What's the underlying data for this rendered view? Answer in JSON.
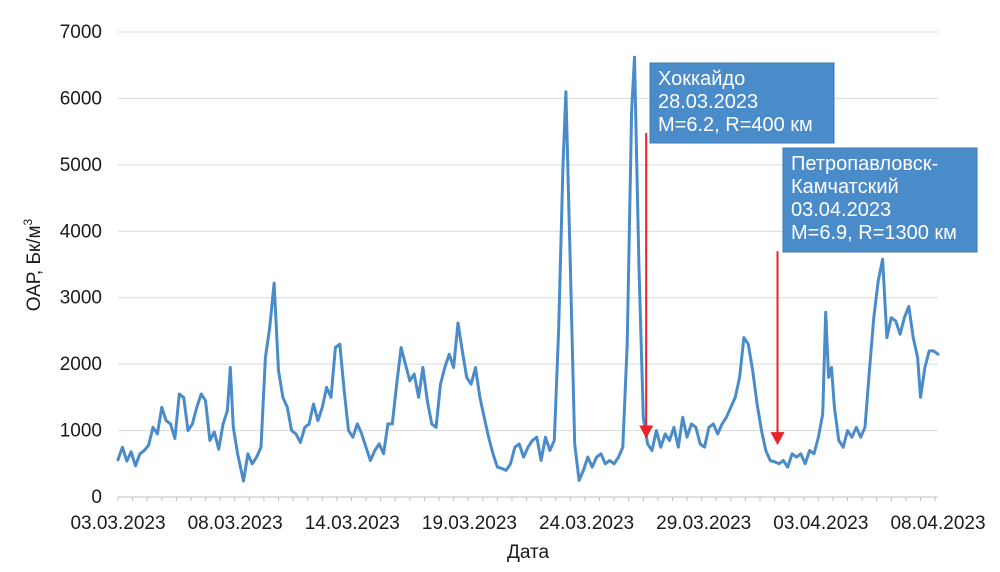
{
  "chart_data": {
    "type": "line",
    "xlabel": "Дата",
    "ylabel": "ОАР, Бк/м",
    "ylabel_superscript": "3",
    "ylim": [
      0,
      7000
    ],
    "yticks": [
      "0",
      "1000",
      "2000",
      "3000",
      "4000",
      "5000",
      "6000",
      "7000"
    ],
    "x_tick_labels": [
      "03.03.2023",
      "08.03.2023",
      "14.03.2023",
      "19.03.2023",
      "24.03.2023",
      "29.03.2023",
      "03.04.2023",
      "08.04.2023"
    ],
    "grid": true,
    "colors": {
      "line": "#4a8bc9",
      "note_fill": "#4a8bc9",
      "arrow": "#e8232a",
      "grid": "#d9d9d9"
    },
    "series": [
      {
        "values": [
          [
            0.0,
            560
          ],
          [
            0.3,
            750
          ],
          [
            0.6,
            540
          ],
          [
            0.9,
            680
          ],
          [
            1.2,
            470
          ],
          [
            1.5,
            650
          ],
          [
            1.8,
            700
          ],
          [
            2.1,
            780
          ],
          [
            2.4,
            1050
          ],
          [
            2.7,
            950
          ],
          [
            3.0,
            1350
          ],
          [
            3.3,
            1150
          ],
          [
            3.6,
            1100
          ],
          [
            3.9,
            880
          ],
          [
            4.2,
            1550
          ],
          [
            4.5,
            1500
          ],
          [
            4.8,
            1000
          ],
          [
            5.1,
            1100
          ],
          [
            5.4,
            1350
          ],
          [
            5.7,
            1550
          ],
          [
            6.0,
            1450
          ],
          [
            6.3,
            850
          ],
          [
            6.6,
            980
          ],
          [
            6.9,
            720
          ],
          [
            7.2,
            1100
          ],
          [
            7.5,
            1300
          ],
          [
            7.7,
            1950
          ],
          [
            7.9,
            1050
          ],
          [
            8.2,
            650
          ],
          [
            8.6,
            240
          ],
          [
            8.9,
            650
          ],
          [
            9.2,
            500
          ],
          [
            9.5,
            600
          ],
          [
            9.8,
            750
          ],
          [
            10.1,
            2100
          ],
          [
            10.4,
            2550
          ],
          [
            10.7,
            3220
          ],
          [
            11.0,
            1900
          ],
          [
            11.3,
            1500
          ],
          [
            11.6,
            1350
          ],
          [
            11.9,
            1000
          ],
          [
            12.2,
            950
          ],
          [
            12.5,
            820
          ],
          [
            12.8,
            1050
          ],
          [
            13.1,
            1100
          ],
          [
            13.4,
            1400
          ],
          [
            13.7,
            1150
          ],
          [
            14.0,
            1350
          ],
          [
            14.3,
            1650
          ],
          [
            14.6,
            1500
          ],
          [
            14.9,
            2250
          ],
          [
            15.2,
            2300
          ],
          [
            15.5,
            1600
          ],
          [
            15.8,
            1000
          ],
          [
            16.1,
            900
          ],
          [
            16.4,
            1100
          ],
          [
            16.7,
            950
          ],
          [
            17.0,
            750
          ],
          [
            17.3,
            550
          ],
          [
            17.6,
            700
          ],
          [
            17.9,
            800
          ],
          [
            18.2,
            650
          ],
          [
            18.5,
            1100
          ],
          [
            18.8,
            1100
          ],
          [
            19.1,
            1700
          ],
          [
            19.4,
            2250
          ],
          [
            19.7,
            2000
          ],
          [
            20.0,
            1750
          ],
          [
            20.3,
            1850
          ],
          [
            20.6,
            1500
          ],
          [
            20.9,
            1950
          ],
          [
            21.2,
            1450
          ],
          [
            21.5,
            1100
          ],
          [
            21.8,
            1050
          ],
          [
            22.1,
            1700
          ],
          [
            22.4,
            1950
          ],
          [
            22.7,
            2150
          ],
          [
            23.0,
            1950
          ],
          [
            23.3,
            2620
          ],
          [
            23.6,
            2200
          ],
          [
            23.9,
            1800
          ],
          [
            24.2,
            1700
          ],
          [
            24.5,
            1950
          ],
          [
            24.8,
            1500
          ],
          [
            25.1,
            1200
          ],
          [
            25.4,
            900
          ],
          [
            25.7,
            650
          ],
          [
            26.0,
            450
          ],
          [
            26.3,
            430
          ],
          [
            26.6,
            400
          ],
          [
            26.9,
            500
          ],
          [
            27.2,
            750
          ],
          [
            27.5,
            800
          ],
          [
            27.8,
            600
          ],
          [
            28.1,
            750
          ],
          [
            28.4,
            850
          ],
          [
            28.7,
            900
          ],
          [
            29.0,
            550
          ],
          [
            29.3,
            900
          ],
          [
            29.6,
            700
          ],
          [
            29.9,
            850
          ],
          [
            30.2,
            2500
          ],
          [
            30.5,
            5000
          ],
          [
            30.7,
            6100
          ],
          [
            31.0,
            3500
          ],
          [
            31.3,
            800
          ],
          [
            31.6,
            250
          ],
          [
            31.9,
            400
          ],
          [
            32.2,
            600
          ],
          [
            32.5,
            450
          ],
          [
            32.8,
            600
          ],
          [
            33.1,
            650
          ],
          [
            33.4,
            500
          ],
          [
            33.7,
            550
          ],
          [
            34.0,
            500
          ],
          [
            34.3,
            600
          ],
          [
            34.6,
            750
          ],
          [
            34.9,
            2300
          ],
          [
            35.2,
            5800
          ],
          [
            35.4,
            6620
          ],
          [
            35.7,
            3500
          ],
          [
            36.0,
            1200
          ],
          [
            36.3,
            800
          ],
          [
            36.6,
            700
          ],
          [
            36.9,
            1000
          ],
          [
            37.2,
            750
          ],
          [
            37.5,
            950
          ],
          [
            37.8,
            850
          ],
          [
            38.1,
            1050
          ],
          [
            38.4,
            750
          ],
          [
            38.7,
            1200
          ],
          [
            39.0,
            900
          ],
          [
            39.3,
            1100
          ],
          [
            39.6,
            1050
          ],
          [
            39.9,
            800
          ],
          [
            40.2,
            750
          ],
          [
            40.5,
            1050
          ],
          [
            40.8,
            1100
          ],
          [
            41.1,
            950
          ],
          [
            41.4,
            1100
          ],
          [
            41.7,
            1200
          ],
          [
            42.0,
            1350
          ],
          [
            42.3,
            1500
          ],
          [
            42.6,
            1800
          ],
          [
            42.9,
            2400
          ],
          [
            43.2,
            2300
          ],
          [
            43.5,
            1900
          ],
          [
            43.8,
            1400
          ],
          [
            44.1,
            1000
          ],
          [
            44.4,
            700
          ],
          [
            44.7,
            550
          ],
          [
            45.0,
            530
          ],
          [
            45.3,
            500
          ],
          [
            45.6,
            550
          ],
          [
            45.9,
            450
          ],
          [
            46.2,
            650
          ],
          [
            46.5,
            600
          ],
          [
            46.8,
            650
          ],
          [
            47.1,
            500
          ],
          [
            47.4,
            700
          ],
          [
            47.7,
            650
          ],
          [
            48.0,
            900
          ],
          [
            48.3,
            1250
          ],
          [
            48.5,
            2780
          ],
          [
            48.7,
            1800
          ],
          [
            48.9,
            1950
          ],
          [
            49.1,
            1350
          ],
          [
            49.4,
            850
          ],
          [
            49.7,
            750
          ],
          [
            50.0,
            1000
          ],
          [
            50.3,
            900
          ],
          [
            50.6,
            1050
          ],
          [
            50.9,
            900
          ],
          [
            51.2,
            1050
          ],
          [
            51.5,
            1900
          ],
          [
            51.8,
            2700
          ],
          [
            52.1,
            3250
          ],
          [
            52.4,
            3580
          ],
          [
            52.7,
            2400
          ],
          [
            53.0,
            2700
          ],
          [
            53.3,
            2650
          ],
          [
            53.6,
            2450
          ],
          [
            53.9,
            2700
          ],
          [
            54.2,
            2870
          ],
          [
            54.5,
            2400
          ],
          [
            54.8,
            2100
          ],
          [
            55.0,
            1500
          ],
          [
            55.3,
            1950
          ],
          [
            55.6,
            2200
          ],
          [
            55.9,
            2200
          ],
          [
            56.2,
            2150
          ]
        ]
      }
    ],
    "annotations": [
      {
        "lines": [
          "Хоккайдо",
          "28.03.2023",
          "M=6.2, R=400 км"
        ],
        "arrow_x": 36.2,
        "arrow_y_top": 5480,
        "arrow_y_bottom": 880
      },
      {
        "lines": [
          "Петропавловск-",
          "Камчатский",
          "03.04.2023",
          "M=6.9, R=1300 км"
        ],
        "arrow_x": 45.2,
        "arrow_y_top": 3700,
        "arrow_y_bottom": 780
      }
    ]
  }
}
